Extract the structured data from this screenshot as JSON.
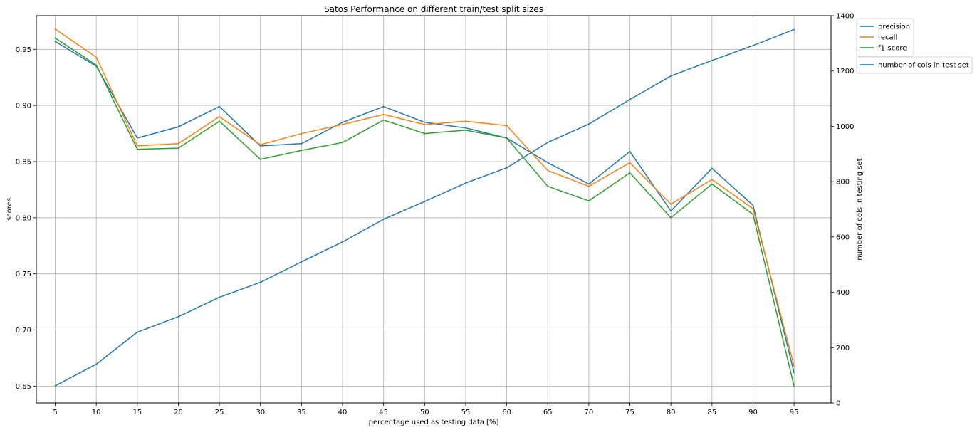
{
  "chart_data": {
    "type": "line",
    "title": "Satos Performance on different train/test split sizes",
    "xlabel": "percentage used as testing data [%]",
    "ylabel": "scores",
    "y2label": "number of cols in testing set",
    "x": [
      5,
      10,
      15,
      20,
      25,
      30,
      35,
      40,
      45,
      50,
      55,
      60,
      65,
      70,
      75,
      80,
      85,
      90,
      95
    ],
    "ylim": [
      0.635,
      0.98
    ],
    "y2lim": [
      0,
      1400
    ],
    "yticks": [
      "0.65",
      "0.70",
      "0.75",
      "0.80",
      "0.85",
      "0.90",
      "0.95"
    ],
    "y2ticks": [
      "0",
      "200",
      "400",
      "600",
      "800",
      "1000",
      "1200",
      "1400"
    ],
    "grid": true,
    "series": [
      {
        "name": "precision",
        "axis": "left",
        "color": "#1f77b4",
        "values": [
          0.957,
          0.935,
          0.871,
          0.881,
          0.899,
          0.864,
          0.866,
          0.885,
          0.899,
          0.885,
          0.88,
          0.871,
          0.849,
          0.83,
          0.859,
          0.806,
          0.844,
          0.811,
          0.662
        ]
      },
      {
        "name": "recall",
        "axis": "left",
        "color": "#ff7f0e",
        "values": [
          0.968,
          0.943,
          0.864,
          0.866,
          0.89,
          0.865,
          0.875,
          0.883,
          0.892,
          0.883,
          0.886,
          0.882,
          0.842,
          0.828,
          0.849,
          0.812,
          0.834,
          0.808,
          0.668
        ]
      },
      {
        "name": "f1-score",
        "axis": "left",
        "color": "#2ca02c",
        "values": [
          0.96,
          0.936,
          0.861,
          0.862,
          0.886,
          0.852,
          0.86,
          0.867,
          0.887,
          0.875,
          0.878,
          0.871,
          0.828,
          0.815,
          0.84,
          0.8,
          0.83,
          0.803,
          0.65
        ]
      },
      {
        "name": "number of cols in test set",
        "axis": "right",
        "color": "#1f77b4",
        "values": [
          62,
          140,
          256,
          312,
          382,
          436,
          510,
          582,
          664,
          728,
          795,
          850,
          942,
          1008,
          1097,
          1182,
          1238,
          1292,
          1350
        ]
      }
    ],
    "legend": [
      {
        "label": "precision",
        "color": "#1f77b4"
      },
      {
        "label": "recall",
        "color": "#ff7f0e"
      },
      {
        "label": "f1-score",
        "color": "#2ca02c"
      }
    ],
    "legend2": [
      {
        "label": "number of cols in test set",
        "color": "#1f77b4"
      }
    ],
    "legend_position": "outside top-right"
  }
}
